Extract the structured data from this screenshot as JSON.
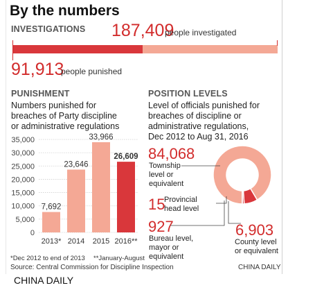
{
  "title": "By the numbers",
  "investigations": {
    "heading": "INVESTIGATIONS",
    "investigated_value": "187,409",
    "investigated_label": "people investigated",
    "punished_value": "91,913",
    "punished_label": "people punished",
    "punished_fraction": 0.4904,
    "colors": {
      "punished": "#d9373b",
      "investigated": "#f4a895"
    }
  },
  "punishment": {
    "heading": "PUNISHMENT",
    "description_lines": [
      "Numbers punished for",
      "breaches of Party discipline",
      "or administrative regulations"
    ],
    "footnote_left": "*Dec 2012 to end of 2013",
    "footnote_right": "**January-August"
  },
  "position_levels": {
    "heading": "POSITION LEVELS",
    "description_lines": [
      "Level of officials punished for",
      "breaches of discipline or",
      "administrative regulations,",
      "Dec 2012 to Aug 31, 2016"
    ],
    "items": [
      {
        "value": "84,068",
        "label_lines": [
          "Township",
          "level or",
          "equivalent"
        ]
      },
      {
        "value": "15",
        "label_lines": [
          "Provincial",
          "head level"
        ]
      },
      {
        "value": "927",
        "label_lines": [
          "Bureau level,",
          "mayor or",
          "equivalent"
        ]
      },
      {
        "value": "6,903",
        "label_lines": [
          "County level",
          "or equivalent"
        ]
      }
    ]
  },
  "source": "Source: Central Commission for Discipline Inspection",
  "credit": "CHINA DAILY",
  "brand": "CHINA DAILY",
  "chart_data": [
    {
      "type": "bar",
      "categories": [
        "2013*",
        "2014",
        "2015",
        "2016**"
      ],
      "values": [
        7692,
        23646,
        33966,
        26609
      ],
      "value_labels": [
        "7,692",
        "23,646",
        "33,966",
        "26,609"
      ],
      "highlight_index": 3,
      "colors": {
        "bar": "#f4a895",
        "highlight": "#d9373b"
      },
      "ylim": [
        0,
        35000
      ],
      "yticks": [
        0,
        5000,
        10000,
        15000,
        20000,
        25000,
        30000,
        35000
      ],
      "ytick_labels": [
        "0",
        "5,000",
        "10,000",
        "15,000",
        "20,000",
        "25,000",
        "30,000",
        "35,000"
      ],
      "grid": true
    },
    {
      "type": "pie",
      "categories": [
        "Township level or equivalent",
        "County level or equivalent",
        "Bureau level, mayor or equivalent",
        "Provincial head level"
      ],
      "values": [
        84068,
        6903,
        927,
        15
      ],
      "colors": {
        "main": "#f4a895",
        "highlight": "#d9373b"
      }
    }
  ]
}
